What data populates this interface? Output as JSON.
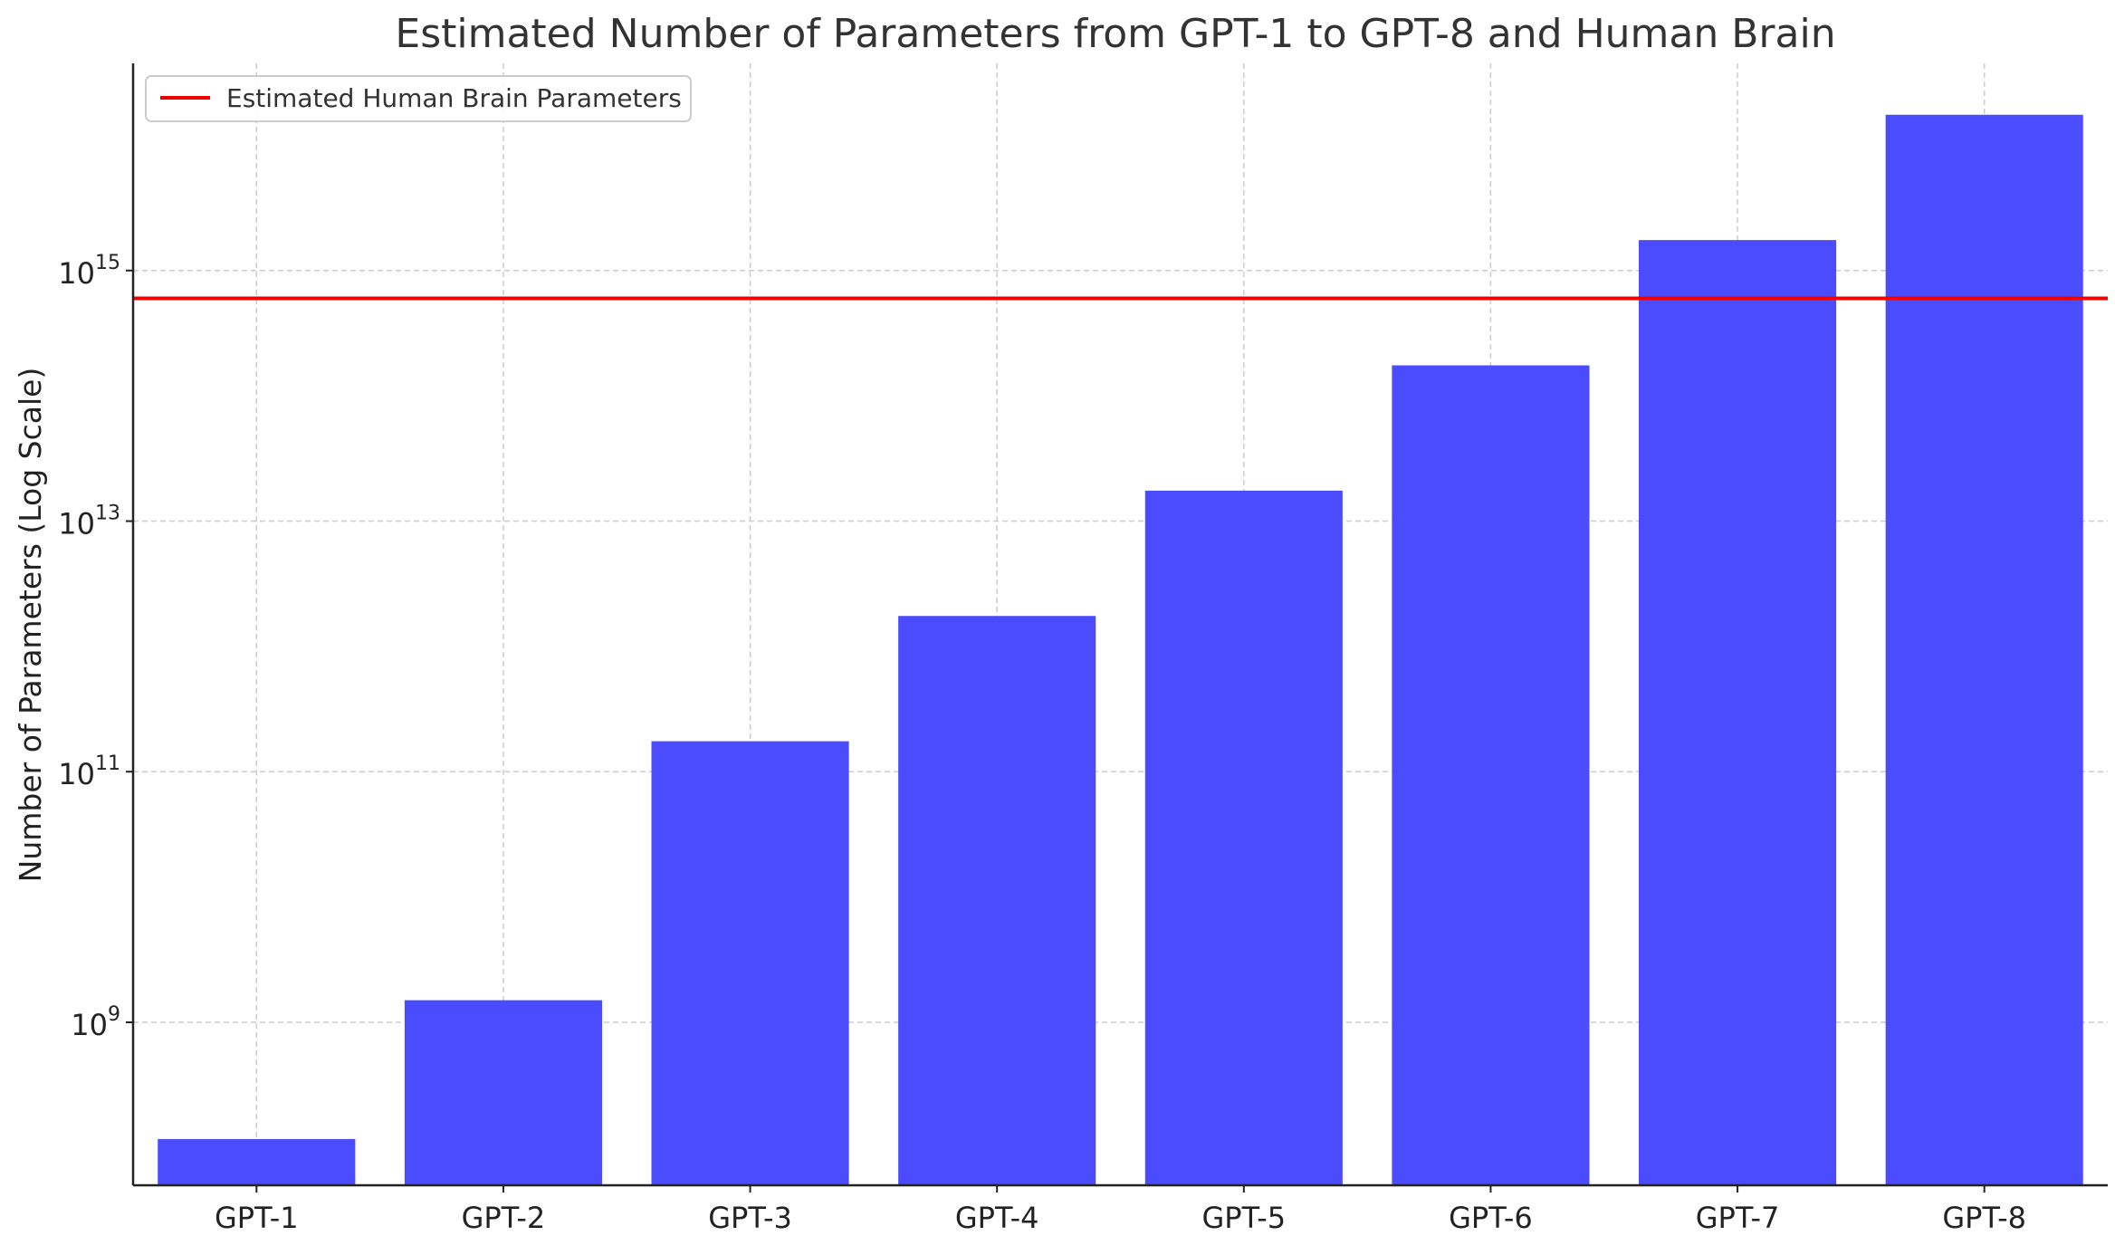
{
  "chart_data": {
    "type": "bar",
    "title": "Estimated Number of Parameters from GPT-1 to GPT-8 and Human Brain",
    "xlabel": "",
    "ylabel": "Number of Parameters (Log Scale)",
    "yscale": "log",
    "ylim": [
      50000000.0,
      4.5e+16
    ],
    "yticks": [
      {
        "value": 1000000000.0,
        "base": "10",
        "exp": "9"
      },
      {
        "value": 100000000000.0,
        "base": "10",
        "exp": "11"
      },
      {
        "value": 10000000000000.0,
        "base": "10",
        "exp": "13"
      },
      {
        "value": 1000000000000000.0,
        "base": "10",
        "exp": "15"
      }
    ],
    "categories": [
      "GPT-1",
      "GPT-2",
      "GPT-3",
      "GPT-4",
      "GPT-5",
      "GPT-6",
      "GPT-7",
      "GPT-8"
    ],
    "series": [
      {
        "values": [
          117000000.0,
          1500000000.0,
          175000000000.0,
          1750000000000.0,
          17500000000000.0,
          175000000000000.0,
          1750000000000000.0,
          1.75e+16
        ],
        "color": "#4b4bff"
      }
    ],
    "reference_line": {
      "name": "Estimated Human Brain Parameters",
      "value": 600000000000000.0,
      "color": "#ee0000"
    },
    "grid": true,
    "legend": {
      "position": "top-left"
    }
  }
}
